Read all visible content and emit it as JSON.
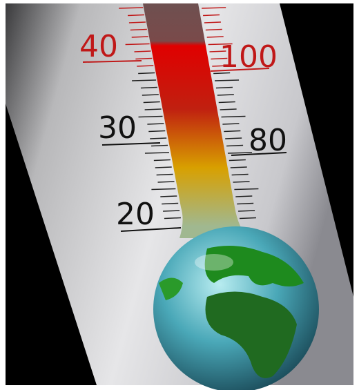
{
  "scale": {
    "celsius": [
      40,
      30,
      20
    ],
    "fahrenheit": [
      100,
      80
    ]
  }
}
